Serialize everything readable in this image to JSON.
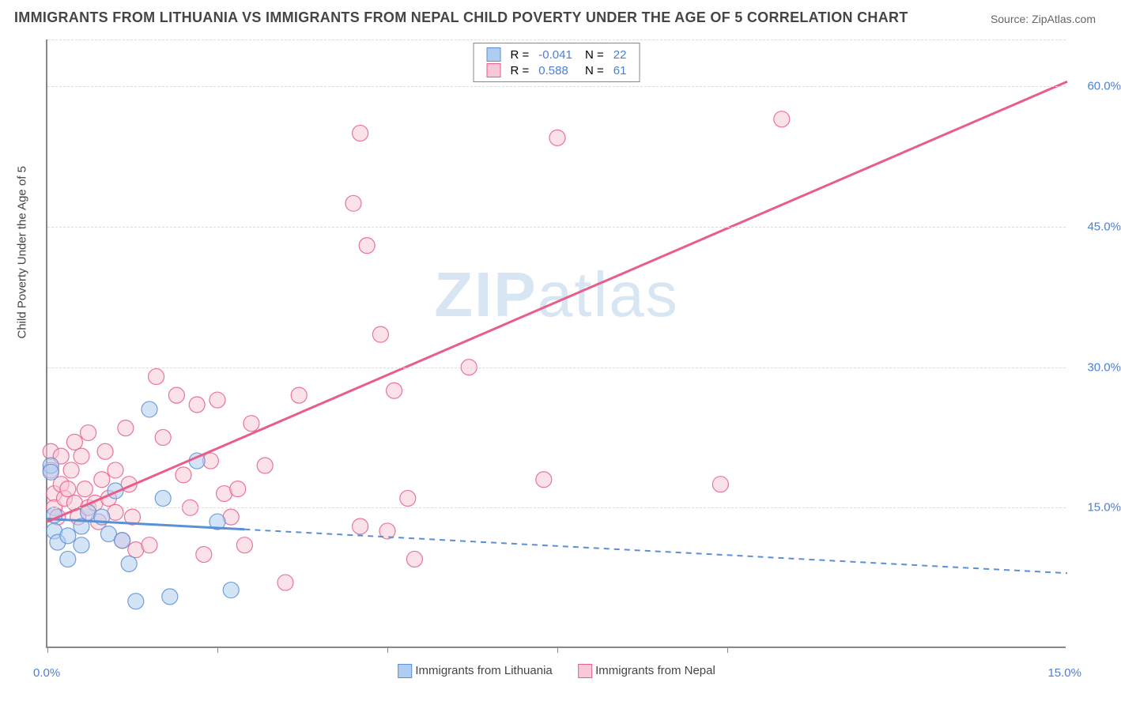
{
  "title": "IMMIGRANTS FROM LITHUANIA VS IMMIGRANTS FROM NEPAL CHILD POVERTY UNDER THE AGE OF 5 CORRELATION CHART",
  "source": "Source: ZipAtlas.com",
  "ylabel": "Child Poverty Under the Age of 5",
  "watermark_left": "ZIP",
  "watermark_right": "atlas",
  "chart": {
    "type": "scatter",
    "xlim": [
      0,
      15
    ],
    "ylim": [
      0,
      65
    ],
    "y_gridlines": [
      15,
      30,
      45,
      60
    ],
    "y_tick_labels": [
      "15.0%",
      "30.0%",
      "45.0%",
      "60.0%"
    ],
    "x_min_label": "0.0%",
    "x_max_label": "15.0%",
    "x_ticks": [
      0,
      2.5,
      5,
      7.5,
      10
    ],
    "background_color": "#ffffff",
    "grid_color": "#dcdcdc",
    "marker_radius": 10,
    "marker_opacity": 0.55,
    "series": [
      {
        "name": "Immigrants from Lithuania",
        "color_fill": "#aecdf0",
        "color_stroke": "#5b8fd6",
        "R": "-0.041",
        "N": "22",
        "trend": {
          "y_at_x0": 13.8,
          "y_at_xmax": 8.0,
          "solid_until_x": 2.9
        },
        "points": [
          [
            0.05,
            19.5
          ],
          [
            0.05,
            18.8
          ],
          [
            0.1,
            14.2
          ],
          [
            0.1,
            12.5
          ],
          [
            0.15,
            11.3
          ],
          [
            0.3,
            12.0
          ],
          [
            0.3,
            9.5
          ],
          [
            0.5,
            13.0
          ],
          [
            0.5,
            11.0
          ],
          [
            0.6,
            14.5
          ],
          [
            0.8,
            14.0
          ],
          [
            0.9,
            12.2
          ],
          [
            1.0,
            16.8
          ],
          [
            1.1,
            11.5
          ],
          [
            1.2,
            9.0
          ],
          [
            1.3,
            5.0
          ],
          [
            1.5,
            25.5
          ],
          [
            1.7,
            16.0
          ],
          [
            1.8,
            5.5
          ],
          [
            2.2,
            20.0
          ],
          [
            2.5,
            13.5
          ],
          [
            2.7,
            6.2
          ]
        ]
      },
      {
        "name": "Immigrants from Nepal",
        "color_fill": "#f7c9d6",
        "color_stroke": "#e85d89",
        "R": "0.588",
        "N": "61",
        "trend": {
          "y_at_x0": 13.5,
          "y_at_xmax": 60.5,
          "solid_until_x": 15
        },
        "points": [
          [
            0.05,
            21.0
          ],
          [
            0.05,
            19.0
          ],
          [
            0.1,
            16.5
          ],
          [
            0.1,
            15.0
          ],
          [
            0.15,
            14.0
          ],
          [
            0.2,
            20.5
          ],
          [
            0.2,
            17.5
          ],
          [
            0.25,
            16.0
          ],
          [
            0.3,
            17.0
          ],
          [
            0.35,
            19.0
          ],
          [
            0.4,
            15.5
          ],
          [
            0.4,
            22.0
          ],
          [
            0.45,
            14.0
          ],
          [
            0.5,
            20.5
          ],
          [
            0.55,
            17.0
          ],
          [
            0.6,
            23.0
          ],
          [
            0.6,
            15.0
          ],
          [
            0.7,
            15.5
          ],
          [
            0.75,
            13.5
          ],
          [
            0.8,
            18.0
          ],
          [
            0.85,
            21.0
          ],
          [
            0.9,
            16.0
          ],
          [
            1.0,
            14.5
          ],
          [
            1.0,
            19.0
          ],
          [
            1.1,
            11.5
          ],
          [
            1.15,
            23.5
          ],
          [
            1.2,
            17.5
          ],
          [
            1.25,
            14.0
          ],
          [
            1.3,
            10.5
          ],
          [
            1.5,
            11.0
          ],
          [
            1.6,
            29.0
          ],
          [
            1.7,
            22.5
          ],
          [
            1.9,
            27.0
          ],
          [
            2.0,
            18.5
          ],
          [
            2.1,
            15.0
          ],
          [
            2.2,
            26.0
          ],
          [
            2.3,
            10.0
          ],
          [
            2.4,
            20.0
          ],
          [
            2.5,
            26.5
          ],
          [
            2.6,
            16.5
          ],
          [
            2.7,
            14.0
          ],
          [
            2.8,
            17.0
          ],
          [
            2.9,
            11.0
          ],
          [
            3.0,
            24.0
          ],
          [
            3.2,
            19.5
          ],
          [
            3.5,
            7.0
          ],
          [
            3.7,
            27.0
          ],
          [
            4.5,
            47.5
          ],
          [
            4.6,
            55.0
          ],
          [
            4.6,
            13.0
          ],
          [
            4.7,
            43.0
          ],
          [
            4.9,
            33.5
          ],
          [
            5.0,
            12.5
          ],
          [
            5.1,
            27.5
          ],
          [
            5.3,
            16.0
          ],
          [
            5.4,
            9.5
          ],
          [
            6.2,
            30.0
          ],
          [
            7.3,
            18.0
          ],
          [
            7.5,
            54.5
          ],
          [
            10.8,
            56.5
          ],
          [
            9.9,
            17.5
          ]
        ]
      }
    ]
  },
  "legend_bottom": [
    {
      "label": "Immigrants from Lithuania",
      "fill": "#aecdf0",
      "stroke": "#5b8fd6"
    },
    {
      "label": "Immigrants from Nepal",
      "fill": "#f7c9d6",
      "stroke": "#e85d89"
    }
  ]
}
